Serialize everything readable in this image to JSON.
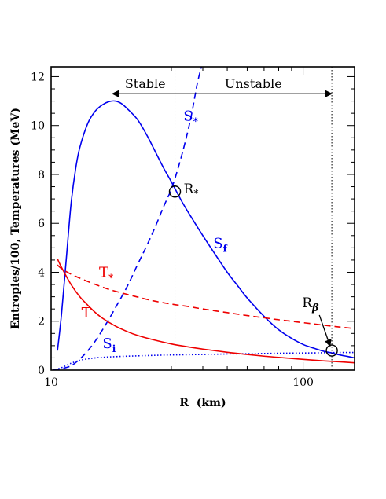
{
  "chart_data": {
    "type": "line",
    "title": "",
    "xlabel": "R  (km)",
    "ylabel": "Entropies/100, Temperatures (MeV)",
    "x_scale": "log",
    "xlim": [
      10,
      160
    ],
    "ylim": [
      0,
      12.4
    ],
    "x_major_ticks": [
      10,
      100
    ],
    "x_tick_labels": [
      "10",
      "100"
    ],
    "y_major_ticks": [
      0,
      2,
      4,
      6,
      8,
      10,
      12
    ],
    "y_tick_labels": [
      "0",
      "2",
      "4",
      "6",
      "8",
      "10",
      "12"
    ],
    "grid": false,
    "colors": {
      "blue": "#0000ee",
      "red": "#ee0000",
      "black": "#000000"
    },
    "series": [
      {
        "name": "S_f",
        "label_main": "S",
        "label_sub": "f",
        "color": "#0000ee",
        "style": "solid",
        "x": [
          10.6,
          11,
          11.5,
          12,
          12.5,
          13,
          14,
          15,
          16,
          17,
          18,
          19,
          20,
          22,
          24,
          26,
          28,
          30,
          33,
          36,
          40,
          45,
          50,
          55,
          60,
          70,
          80,
          90,
          100,
          110,
          120,
          130,
          140,
          150,
          160
        ],
        "y": [
          0.8,
          2.3,
          4.6,
          6.8,
          8.2,
          9.1,
          10.1,
          10.6,
          10.85,
          10.98,
          11.0,
          10.9,
          10.7,
          10.25,
          9.6,
          8.9,
          8.25,
          7.7,
          6.9,
          6.25,
          5.5,
          4.7,
          4.0,
          3.45,
          2.95,
          2.2,
          1.65,
          1.3,
          1.05,
          0.9,
          0.78,
          0.7,
          0.62,
          0.56,
          0.5
        ]
      },
      {
        "name": "S_*",
        "label_main": "S",
        "label_sub": "*",
        "color": "#0000ee",
        "style": "dashed",
        "x": [
          10.2,
          11,
          12,
          13,
          14,
          15,
          16,
          17,
          18,
          20,
          22,
          24,
          26,
          28,
          30,
          32,
          34,
          36,
          38,
          39.5
        ],
        "y": [
          0.02,
          0.06,
          0.18,
          0.45,
          0.8,
          1.2,
          1.65,
          2.1,
          2.55,
          3.4,
          4.3,
          5.1,
          5.9,
          6.7,
          7.4,
          8.3,
          9.3,
          10.4,
          11.7,
          12.4
        ]
      },
      {
        "name": "S_i",
        "label_main": "S",
        "label_sub": "i",
        "color": "#0000ee",
        "style": "dotted",
        "x": [
          10.4,
          11,
          12,
          13,
          14,
          15,
          17,
          20,
          25,
          30,
          40,
          50,
          60,
          80,
          100,
          120,
          140,
          160
        ],
        "y": [
          0.03,
          0.1,
          0.28,
          0.4,
          0.46,
          0.5,
          0.54,
          0.57,
          0.6,
          0.62,
          0.64,
          0.66,
          0.67,
          0.69,
          0.7,
          0.71,
          0.72,
          0.72
        ]
      },
      {
        "name": "T",
        "label_main": "T",
        "label_sub": "",
        "color": "#ee0000",
        "style": "solid",
        "x": [
          10.6,
          11,
          12,
          13,
          14,
          15,
          16,
          18,
          20,
          22,
          25,
          30,
          35,
          40,
          50,
          60,
          70,
          80,
          100,
          120,
          140,
          160
        ],
        "y": [
          4.55,
          4.2,
          3.5,
          3.0,
          2.65,
          2.35,
          2.12,
          1.8,
          1.58,
          1.42,
          1.26,
          1.07,
          0.95,
          0.86,
          0.73,
          0.64,
          0.57,
          0.52,
          0.44,
          0.38,
          0.34,
          0.3
        ]
      },
      {
        "name": "T_*",
        "label_main": "T",
        "label_sub": "*",
        "color": "#ee0000",
        "style": "dashed",
        "x": [
          10.6,
          11,
          12,
          13,
          14,
          15,
          17,
          20,
          25,
          30,
          35,
          40,
          50,
          60,
          70,
          80,
          100,
          120,
          140,
          160
        ],
        "y": [
          4.3,
          4.15,
          3.92,
          3.76,
          3.62,
          3.5,
          3.3,
          3.1,
          2.85,
          2.7,
          2.6,
          2.5,
          2.35,
          2.23,
          2.14,
          2.06,
          1.94,
          1.84,
          1.76,
          1.7
        ]
      }
    ],
    "vertical_lines": [
      {
        "name": "R_star_line",
        "x": 31,
        "style": "dotted"
      },
      {
        "name": "R_beta_line",
        "x": 130,
        "style": "dotted"
      }
    ],
    "regions": {
      "stable": {
        "label": "Stable",
        "x_from": 31,
        "x_to": 17.5,
        "y": 11.3
      },
      "unstable": {
        "label": "Unstable",
        "x_from": 31,
        "x_to": 130,
        "y": 11.3
      }
    },
    "points": [
      {
        "name": "R_star",
        "label_main": "R",
        "label_sub": "*",
        "x": 31,
        "y": 7.3
      },
      {
        "name": "R_beta",
        "label_main": "R",
        "label_sub": "β",
        "x": 130,
        "y": 0.8
      }
    ],
    "curve_labels": [
      {
        "series": "S_*",
        "x": 33.5,
        "y": 10.2,
        "color": "#0000ee"
      },
      {
        "series": "S_f",
        "x": 44,
        "y": 5.0,
        "color": "#0000ee"
      },
      {
        "series": "S_i",
        "x": 16,
        "y": 0.9,
        "color": "#0000ee"
      },
      {
        "series": "T",
        "x": 13.2,
        "y": 2.15,
        "color": "#ee0000"
      },
      {
        "series": "T_*",
        "x": 15.5,
        "y": 3.8,
        "color": "#ee0000"
      }
    ],
    "annotations": [
      {
        "name": "R_beta_arrow",
        "from": {
          "x": 116,
          "y": 2.25
        },
        "to": {
          "x": 128,
          "y": 0.98
        }
      }
    ]
  }
}
